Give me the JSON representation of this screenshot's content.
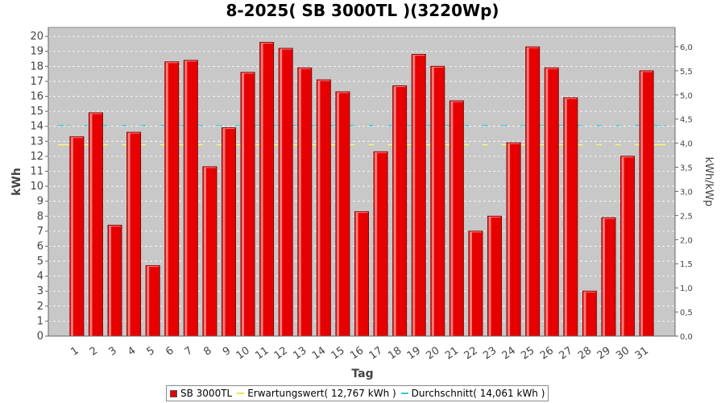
{
  "chart_data": {
    "type": "bar",
    "title": "8-2025( SB 3000TL )(3220Wp)",
    "xlabel": "Tag",
    "ylabel": "kWh",
    "ylabel_right": "kWh/kWp",
    "ylim": [
      0,
      20.6
    ],
    "y_ticks": [
      "0",
      "1",
      "2",
      "3",
      "4",
      "5",
      "6",
      "7",
      "8",
      "9",
      "10",
      "11",
      "12",
      "13",
      "14",
      "15",
      "16",
      "17",
      "18",
      "19",
      "20"
    ],
    "ylim_right": [
      0,
      6.4
    ],
    "y_ticks_right": [
      "0,0",
      "0,5",
      "1,0",
      "1,5",
      "2,0",
      "2,5",
      "3,0",
      "3,5",
      "4,0",
      "4,5",
      "5,0",
      "5,5",
      "6,0"
    ],
    "categories": [
      "1",
      "2",
      "3",
      "4",
      "5",
      "6",
      "7",
      "8",
      "9",
      "10",
      "11",
      "12",
      "13",
      "14",
      "15",
      "16",
      "17",
      "18",
      "19",
      "20",
      "21",
      "22",
      "23",
      "24",
      "25",
      "26",
      "27",
      "28",
      "29",
      "30",
      "31"
    ],
    "series": [
      {
        "name": "SB 3000TL",
        "color": "#e60000",
        "values": [
          13.3,
          14.9,
          7.4,
          13.6,
          4.7,
          18.3,
          18.4,
          11.3,
          13.9,
          17.6,
          19.6,
          19.2,
          17.9,
          17.1,
          16.3,
          8.3,
          12.3,
          16.7,
          18.8,
          18.0,
          15.7,
          7.0,
          8.0,
          12.9,
          19.3,
          17.9,
          15.9,
          3.0,
          7.9,
          12.0,
          17.7
        ]
      }
    ],
    "reference_lines": [
      {
        "name": "Erwartungswert",
        "value": 12.767,
        "color": "#ffff66",
        "style": "solid"
      },
      {
        "name": "Durchschnitt",
        "value": 14.061,
        "color": "#33cccc",
        "style": "dashed"
      }
    ],
    "legend": {
      "position": "bottom",
      "items": [
        "SB 3000TL",
        "Erwartungswert( 12,767 kWh )",
        "Durchschnitt( 14,061 kWh )"
      ]
    },
    "grid": true,
    "background": "#c8c8c8"
  }
}
